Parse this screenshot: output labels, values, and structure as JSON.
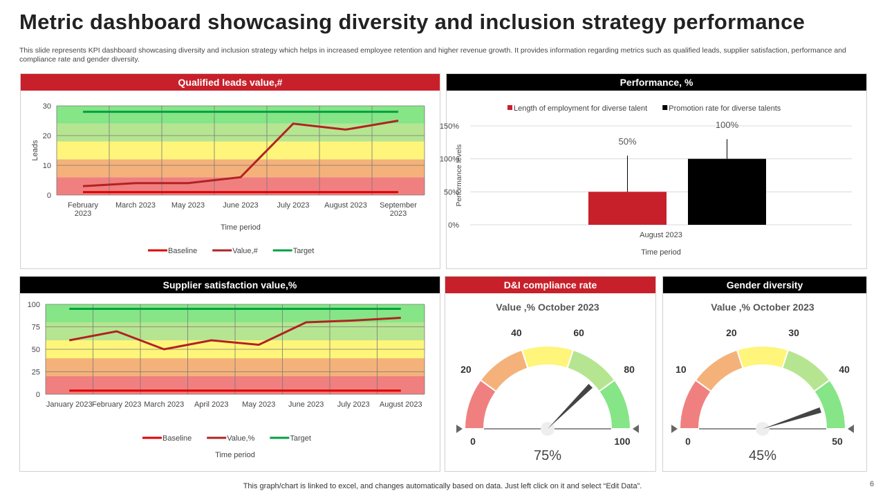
{
  "title": "Metric dashboard showcasing diversity and inclusion strategy performance",
  "description": "This slide represents KPI dashboard showcasing diversity and inclusion strategy which helps in increased employee retention and higher revenue growth. It provides information regarding metrics such as qualified leads, supplier satisfaction, performance and compliance rate and gender diversity.",
  "panels": {
    "leads": "Qualified leads value,#",
    "performance": "Performance, %",
    "supplier": "Supplier satisfaction value,%",
    "compliance": "D&I compliance rate",
    "gender": "Gender diversity"
  },
  "footer": "This graph/chart is linked to excel,  and changes automatically based on data. Just left click on it and select “Edit Data”.",
  "page_number": "6",
  "colors": {
    "red": "#c8202a",
    "band_red": "#f08080",
    "band_orange": "#f4b27a",
    "band_yellow": "#fef57a",
    "band_lightgreen": "#b6e591",
    "band_green": "#86e586",
    "baseline": "#e00000",
    "value": "#b22222",
    "target": "#00a040"
  },
  "chart_data": [
    {
      "type": "line",
      "xlabel": "Time period",
      "ylabel": "Leads",
      "ylim": [
        0,
        30
      ],
      "yticks": [
        0,
        10,
        20,
        30
      ],
      "categories": [
        "February 2023",
        "March 2023",
        "May 2023",
        "June 2023",
        "July 2023",
        "August 2023",
        "September 2023"
      ],
      "bands": [
        [
          0,
          6
        ],
        [
          6,
          12
        ],
        [
          12,
          18
        ],
        [
          18,
          24
        ],
        [
          24,
          30
        ]
      ],
      "series": [
        {
          "name": "Baseline",
          "values": [
            1,
            1,
            1,
            1,
            1,
            1,
            1
          ]
        },
        {
          "name": "Value,#",
          "values": [
            3,
            4,
            4,
            6,
            24,
            22,
            25
          ]
        },
        {
          "name": "Target",
          "values": [
            28,
            28,
            28,
            28,
            28,
            28,
            28
          ]
        }
      ],
      "legend": "bottom",
      "grid": true
    },
    {
      "type": "bar",
      "xlabel": "Time period",
      "ylabel": "Performance levels",
      "ylim": [
        0,
        150
      ],
      "yticks": [
        "0%",
        "50%",
        "100%",
        "150%"
      ],
      "categories": [
        "August 2023"
      ],
      "series": [
        {
          "name": "Length of employment for diverse talent",
          "values": [
            50
          ],
          "label": "50%",
          "error_top": 105
        },
        {
          "name": "Promotion rate for diverse talents",
          "values": [
            100
          ],
          "label": "100%",
          "error_top": 130
        }
      ],
      "legend": "top",
      "grid": true
    },
    {
      "type": "line",
      "xlabel": "Time period",
      "ylabel": "",
      "ylim": [
        0,
        100
      ],
      "yticks": [
        0,
        25,
        50,
        75,
        100
      ],
      "categories": [
        "January 2023",
        "February 2023",
        "March 2023",
        "April 2023",
        "May 2023",
        "June 2023",
        "July 2023",
        "August 2023"
      ],
      "bands": [
        [
          0,
          20
        ],
        [
          20,
          40
        ],
        [
          40,
          60
        ],
        [
          60,
          80
        ],
        [
          80,
          100
        ]
      ],
      "series": [
        {
          "name": "Baseline",
          "values": [
            4,
            4,
            4,
            4,
            4,
            4,
            4,
            4
          ]
        },
        {
          "name": "Value,%",
          "values": [
            60,
            70,
            50,
            60,
            55,
            80,
            82,
            85
          ]
        },
        {
          "name": "Target",
          "values": [
            95,
            95,
            95,
            95,
            95,
            95,
            95,
            95
          ]
        }
      ],
      "legend": "bottom",
      "grid": true
    },
    {
      "type": "gauge",
      "title": "Value ,% October 2023",
      "min": 0,
      "max": 100,
      "ticks": [
        "0",
        "20",
        "40",
        "60",
        "80",
        "100"
      ],
      "value": 75,
      "value_label": "75%"
    },
    {
      "type": "gauge",
      "title": "Value ,% October 2023",
      "min": 0,
      "max": 50,
      "ticks": [
        "0",
        "10",
        "20",
        "30",
        "40",
        "50"
      ],
      "value": 45,
      "value_label": "45%"
    }
  ]
}
